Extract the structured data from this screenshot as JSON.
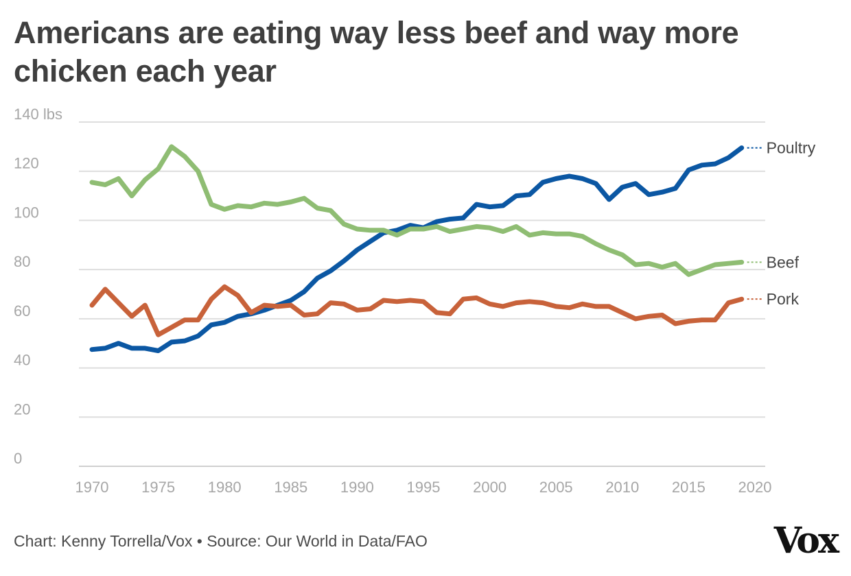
{
  "title": "Americans are eating way less beef and way more chicken each year",
  "footer": "Chart: Kenny Torrella/Vox • Source: Our World in Data/FAO",
  "logo": "Vox",
  "chart_data": {
    "type": "line",
    "title": "Americans are eating way less beef and way more chicken each year",
    "ylim": [
      0,
      140
    ],
    "xlim": [
      1970,
      2020
    ],
    "yticks": [
      0,
      20,
      40,
      60,
      80,
      100,
      120,
      140
    ],
    "ytick_labels": [
      "0",
      "20",
      "40",
      "60",
      "80",
      "100",
      "120",
      "140 lbs"
    ],
    "xticks": [
      1970,
      1975,
      1980,
      1985,
      1990,
      1995,
      2000,
      2005,
      2010,
      2015,
      2020
    ],
    "xtick_labels": [
      "1970",
      "1975",
      "1980",
      "1985",
      "1990",
      "1995",
      "2000",
      "2005",
      "2010",
      "2015",
      "2020"
    ],
    "grid": true,
    "legend_placement": "inline-right",
    "x": [
      1970,
      1971,
      1972,
      1973,
      1974,
      1975,
      1976,
      1977,
      1978,
      1979,
      1980,
      1981,
      1982,
      1983,
      1984,
      1985,
      1986,
      1987,
      1988,
      1989,
      1990,
      1991,
      1992,
      1993,
      1994,
      1995,
      1996,
      1997,
      1998,
      1999,
      2000,
      2001,
      2002,
      2003,
      2004,
      2005,
      2006,
      2007,
      2008,
      2009,
      2010,
      2011,
      2012,
      2013,
      2014,
      2015,
      2016,
      2017,
      2018,
      2019
    ],
    "series": [
      {
        "name": "Poultry",
        "color": "#0b57a3",
        "values": [
          47.5,
          48,
          50,
          48,
          48,
          47,
          50.5,
          51,
          53,
          57.5,
          58.5,
          61,
          62,
          63.5,
          65.5,
          67.5,
          71,
          76.5,
          79.5,
          83.5,
          88,
          91.5,
          95,
          96,
          98,
          97,
          99.5,
          100.5,
          101,
          106.5,
          105.5,
          106,
          110,
          110.5,
          115.5,
          117,
          118,
          117,
          115,
          108.5,
          113.5,
          115,
          110.5,
          111.5,
          113,
          120.5,
          122.5,
          123,
          125.5,
          129.5
        ]
      },
      {
        "name": "Beef",
        "color": "#8fbd73",
        "values": [
          115.5,
          114.5,
          117,
          110,
          116.5,
          121,
          130,
          126,
          120,
          106.5,
          104.5,
          106,
          105.5,
          107,
          106.5,
          107.5,
          109,
          105,
          104,
          98.5,
          96.5,
          96,
          96,
          94,
          96.5,
          96.5,
          97.5,
          95.5,
          96.5,
          97.5,
          97,
          95.5,
          97.5,
          94,
          95,
          94.5,
          94.5,
          93.5,
          90.5,
          88,
          86,
          82,
          82.5,
          81,
          82.5,
          78,
          80,
          82,
          82.5,
          83
        ]
      },
      {
        "name": "Pork",
        "color": "#c8623a",
        "values": [
          65.5,
          72,
          66.5,
          61,
          65.5,
          53.5,
          56.5,
          59.5,
          59.5,
          68,
          73,
          69.5,
          62.5,
          65.5,
          65,
          65.5,
          61.5,
          62,
          66.5,
          66,
          63.5,
          64,
          67.5,
          67,
          67.5,
          67,
          62.5,
          62,
          68,
          68.5,
          66,
          65,
          66.5,
          67,
          66.5,
          65,
          64.5,
          66,
          65,
          65,
          62.5,
          60,
          61,
          61.5,
          58,
          59,
          59.5,
          59.5,
          66.5,
          68
        ]
      }
    ]
  }
}
